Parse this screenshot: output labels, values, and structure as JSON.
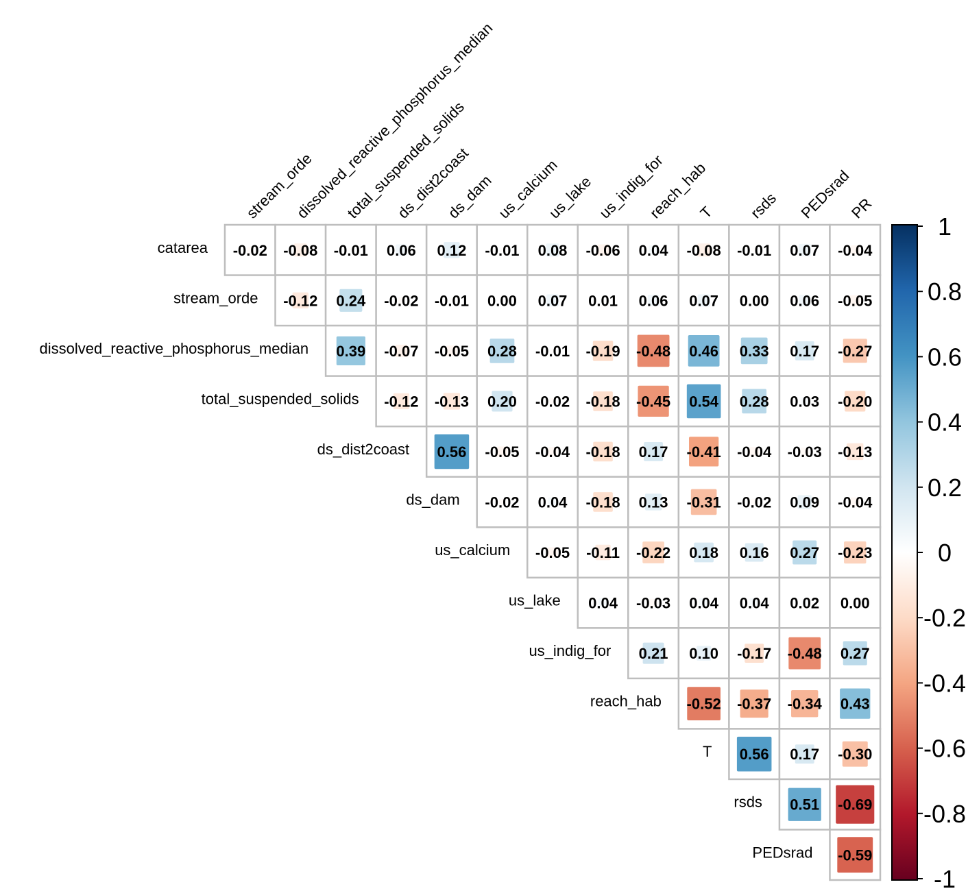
{
  "chart_data": {
    "type": "heatmap",
    "subtype": "correlation-matrix-upper-triangle",
    "title": "",
    "row_variables": [
      "catarea",
      "stream_orde",
      "dissolved_reactive_phosphorus_median",
      "total_suspended_solids",
      "ds_dist2coast",
      "ds_dam",
      "us_calcium",
      "us_lake",
      "us_indig_for",
      "reach_hab",
      "T",
      "rsds",
      "PEDsrad"
    ],
    "column_variables": [
      "stream_orde",
      "dissolved_reactive_phosphorus_median",
      "total_suspended_solids",
      "ds_dist2coast",
      "ds_dam",
      "us_calcium",
      "us_lake",
      "us_indig_for",
      "reach_hab",
      "T",
      "rsds",
      "PEDsrad",
      "PR"
    ],
    "matrix": [
      [
        -0.02,
        -0.08,
        -0.01,
        0.06,
        0.12,
        -0.01,
        0.08,
        -0.06,
        0.04,
        -0.08,
        -0.01,
        0.07,
        -0.04
      ],
      [
        -0.12,
        0.24,
        -0.02,
        -0.01,
        0.0,
        0.07,
        0.01,
        0.06,
        0.07,
        0.0,
        0.06,
        -0.05
      ],
      [
        0.39,
        -0.07,
        -0.05,
        0.28,
        -0.01,
        -0.19,
        -0.48,
        0.46,
        0.33,
        0.17,
        -0.27
      ],
      [
        -0.12,
        -0.13,
        0.2,
        -0.02,
        -0.18,
        -0.45,
        0.54,
        0.28,
        0.03,
        -0.2
      ],
      [
        0.56,
        -0.05,
        -0.04,
        -0.18,
        0.17,
        -0.41,
        -0.04,
        -0.03,
        -0.13
      ],
      [
        -0.02,
        0.04,
        -0.18,
        0.13,
        -0.31,
        -0.02,
        0.09,
        -0.04
      ],
      [
        -0.05,
        -0.11,
        -0.22,
        0.18,
        0.16,
        0.27,
        -0.23
      ],
      [
        0.04,
        -0.03,
        0.04,
        0.04,
        0.02,
        0.0
      ],
      [
        0.21,
        0.1,
        -0.17,
        -0.48,
        0.27
      ],
      [
        -0.52,
        -0.37,
        -0.34,
        0.43
      ],
      [
        0.56,
        0.17,
        -0.3
      ],
      [
        0.51,
        -0.69
      ],
      [
        -0.59
      ]
    ],
    "value_format": "2 decimals",
    "color_scale": {
      "name": "RdBu diverging",
      "range": [
        -1,
        1
      ],
      "ticks": [
        "1",
        "0.8",
        "0.6",
        "0.4",
        "0.2",
        "0",
        "-0.2",
        "-0.4",
        "-0.6",
        "-0.8",
        "-1"
      ],
      "stops": [
        {
          "value": -1.0,
          "color": "#67001f"
        },
        {
          "value": -0.8,
          "color": "#b2182b"
        },
        {
          "value": -0.6,
          "color": "#d6604d"
        },
        {
          "value": -0.4,
          "color": "#f4a582"
        },
        {
          "value": -0.2,
          "color": "#fddbc7"
        },
        {
          "value": 0.0,
          "color": "#ffffff"
        },
        {
          "value": 0.2,
          "color": "#d1e5f0"
        },
        {
          "value": 0.4,
          "color": "#92c5de"
        },
        {
          "value": 0.6,
          "color": "#4393c3"
        },
        {
          "value": 0.8,
          "color": "#2166ac"
        },
        {
          "value": 1.0,
          "color": "#053061"
        }
      ]
    },
    "legend_position": "right",
    "grid": true,
    "grid_color": "#bebebe"
  }
}
